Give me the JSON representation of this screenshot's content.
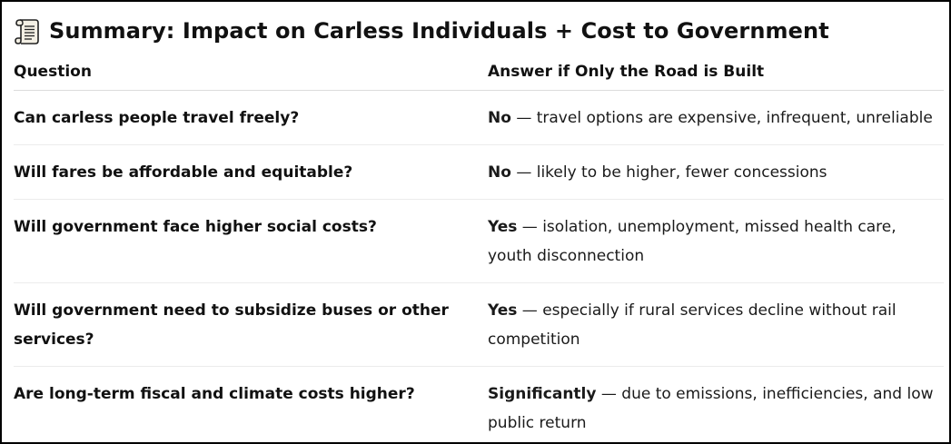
{
  "heading": {
    "icon": "scroll-icon",
    "title": "Summary: Impact on Carless Individuals + Cost to Government"
  },
  "table": {
    "headers": [
      "Question",
      "Answer if Only the Road is Built"
    ],
    "rows": [
      {
        "question": "Can carless people travel freely?",
        "answer_lead": "No",
        "answer_rest": " — travel options are expensive, infrequent, unreliable"
      },
      {
        "question": "Will fares be affordable and equitable?",
        "answer_lead": "No",
        "answer_rest": " — likely to be higher, fewer concessions"
      },
      {
        "question": "Will government face higher social costs?",
        "answer_lead": "Yes",
        "answer_rest": " — isolation, unemployment, missed health care, youth disconnection"
      },
      {
        "question": "Will government need to subsidize buses or other services?",
        "answer_lead": "Yes",
        "answer_rest": " — especially if rural services decline without rail competition"
      },
      {
        "question": "Are long-term fiscal and climate costs higher?",
        "answer_lead": "Significantly",
        "answer_rest": " — due to emissions, inefficiencies, and low public return"
      }
    ]
  }
}
